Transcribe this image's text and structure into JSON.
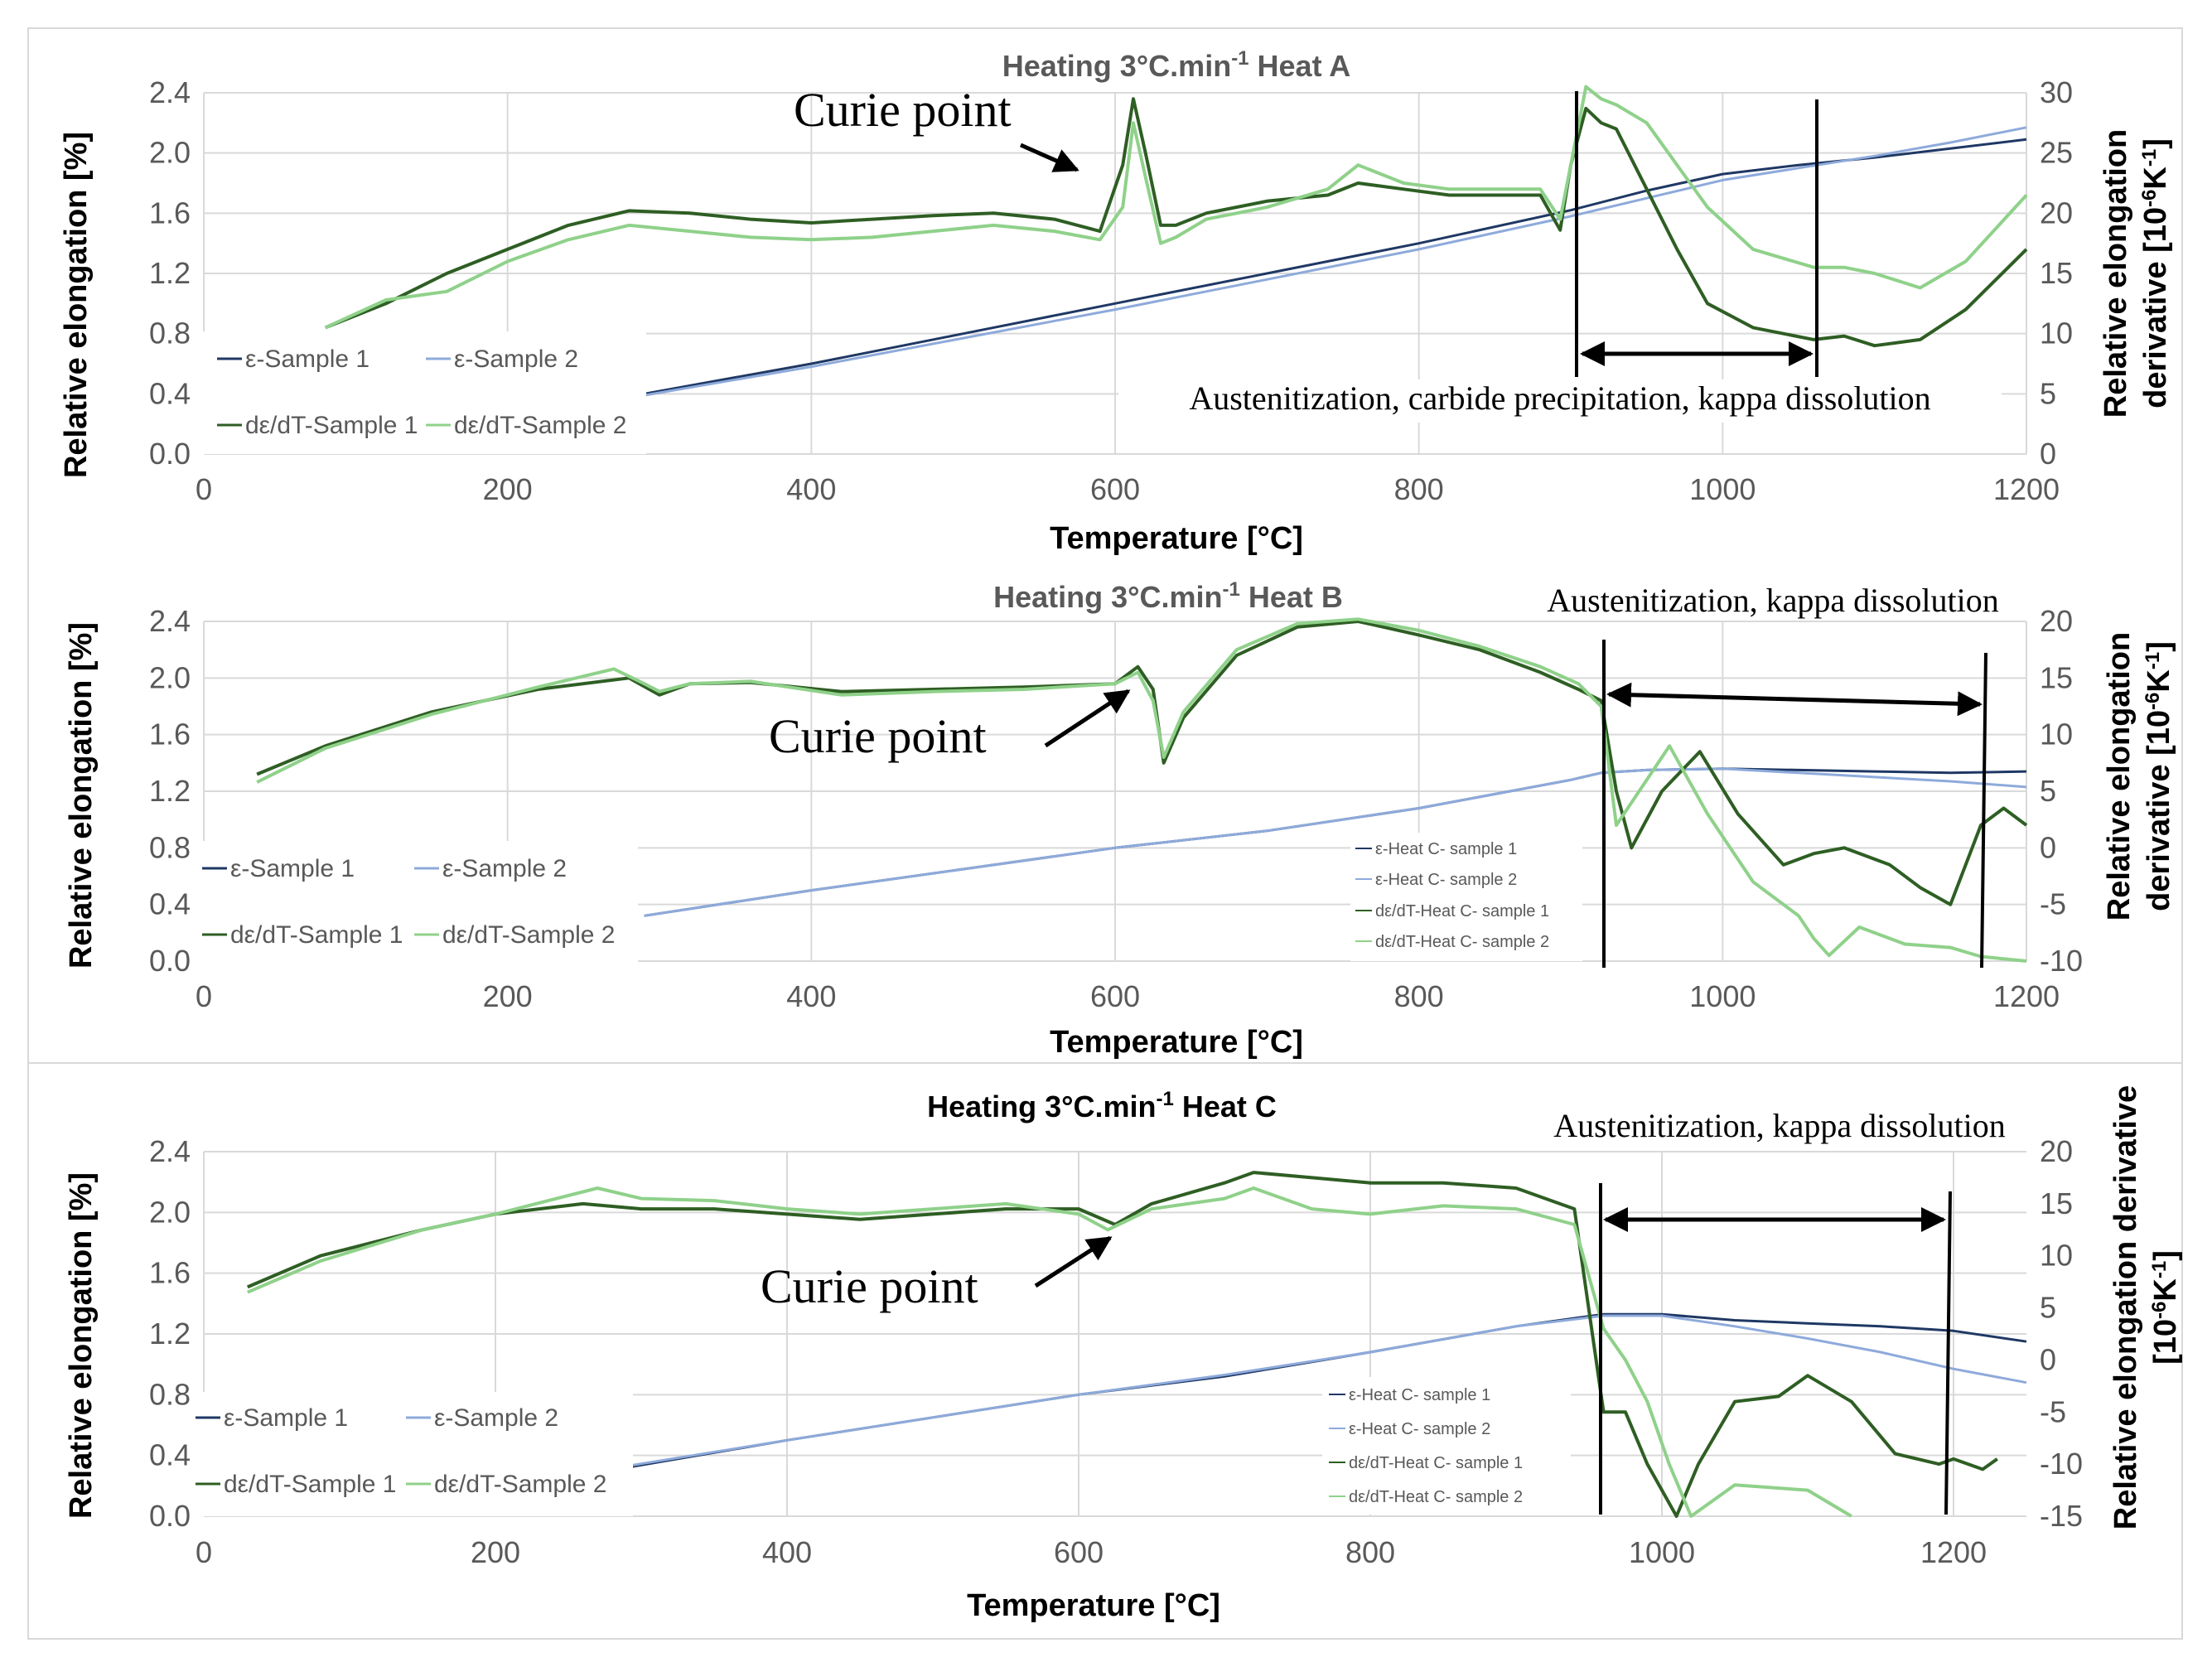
{
  "colors": {
    "eps1": "#1f3864",
    "eps2": "#8eaadb",
    "der1": "#2e5e23",
    "der2": "#8fd18a",
    "grid": "#d9d9d9",
    "tick": "#595959"
  },
  "chart_data": [
    {
      "type": "line",
      "title_prefix": "Heating 3°C.min",
      "title_sup": "-1",
      "title_suffix": " Heat A",
      "xlabel": "Temperature [°C]",
      "ylabel_left": "Relative elongation [%]",
      "ylabel_right_1": "Relative elongation",
      "ylabel_right_2": "derivative [10",
      "ylabel_right_sup": "-6",
      "ylabel_right_3": "K",
      "ylabel_right_sup2": "-1",
      "ylabel_right_4": "]",
      "xlim": [
        0,
        1200
      ],
      "ylim_left": [
        0,
        2.4
      ],
      "ylim_right": [
        0,
        30
      ],
      "x_ticks": [
        "0",
        "200",
        "400",
        "600",
        "800",
        "1000",
        "1200"
      ],
      "y_ticks_left": [
        "0.0",
        "0.4",
        "0.8",
        "1.2",
        "1.6",
        "2.0",
        "2.4"
      ],
      "y_ticks_right": [
        "0",
        "5",
        "10",
        "15",
        "20",
        "25",
        "30"
      ],
      "legend": [
        "ε-Sample 1",
        "ε-Sample 2",
        "dε/dT-Sample 1",
        "dε/dT-Sample 2"
      ],
      "annotations": {
        "curie": "Curie point",
        "range": "Austenitization, carbide precipitation, kappa dissolution"
      },
      "series": [
        {
          "name": "ε-Sample 1",
          "axis": "left",
          "x": [
            290,
            400,
            500,
            600,
            700,
            800,
            900,
            950,
            1000,
            1050,
            1100,
            1150,
            1200
          ],
          "values": [
            0.4,
            0.6,
            0.8,
            1.0,
            1.2,
            1.4,
            1.62,
            1.75,
            1.86,
            1.92,
            1.97,
            2.03,
            2.09
          ]
        },
        {
          "name": "ε-Sample 2",
          "axis": "left",
          "x": [
            290,
            400,
            500,
            600,
            700,
            800,
            900,
            950,
            1000,
            1050,
            1100,
            1150,
            1200
          ],
          "values": [
            0.39,
            0.58,
            0.77,
            0.96,
            1.16,
            1.36,
            1.58,
            1.7,
            1.82,
            1.9,
            1.98,
            2.07,
            2.17
          ]
        },
        {
          "name": "dε/dT-Sample 1",
          "axis": "right",
          "x": [
            80,
            120,
            160,
            200,
            240,
            280,
            320,
            360,
            400,
            440,
            480,
            520,
            560,
            590,
            605,
            612,
            620,
            630,
            640,
            660,
            700,
            740,
            760,
            790,
            820,
            850,
            880,
            893,
            900,
            910,
            920,
            930,
            950,
            970,
            990,
            1020,
            1060,
            1080,
            1100,
            1130,
            1160,
            1200
          ],
          "values": [
            10.5,
            12.5,
            15,
            17,
            19,
            20.2,
            20,
            19.5,
            19.2,
            19.5,
            19.8,
            20,
            19.5,
            18.5,
            24,
            29.5,
            25,
            19,
            19,
            20,
            21,
            21.5,
            22.5,
            22,
            21.5,
            21.5,
            21.5,
            18.6,
            24,
            28.7,
            27.5,
            27,
            22,
            17,
            12.5,
            10.5,
            9.5,
            9.8,
            9,
            9.5,
            12,
            17
          ]
        },
        {
          "name": "dε/dT-Sample 2",
          "axis": "right",
          "x": [
            80,
            120,
            160,
            200,
            240,
            280,
            320,
            360,
            400,
            440,
            480,
            520,
            560,
            590,
            605,
            612,
            620,
            630,
            640,
            660,
            700,
            740,
            760,
            790,
            820,
            850,
            880,
            893,
            900,
            910,
            920,
            930,
            950,
            970,
            990,
            1020,
            1060,
            1080,
            1100,
            1130,
            1160,
            1200
          ],
          "values": [
            10.5,
            12.8,
            13.5,
            16,
            17.8,
            19,
            18.5,
            18,
            17.8,
            18,
            18.5,
            19,
            18.5,
            17.8,
            20.5,
            27.5,
            23,
            17.5,
            18,
            19.5,
            20.5,
            22,
            24,
            22.5,
            22,
            22,
            22,
            19.5,
            24,
            30.5,
            29.5,
            29,
            27.5,
            24,
            20.5,
            17,
            15.5,
            15.5,
            15,
            13.8,
            16,
            21.5
          ]
        }
      ]
    },
    {
      "type": "line",
      "title_prefix": "Heating 3°C.min",
      "title_sup": "-1",
      "title_suffix": " Heat B",
      "xlabel": "Temperature [°C]",
      "ylabel_left": "Relative elongation [%]",
      "ylabel_right_1": "Relative elongation",
      "ylabel_right_2": "derivative [10",
      "ylabel_right_sup": "-6",
      "ylabel_right_3": "K",
      "ylabel_right_sup2": "-1",
      "ylabel_right_4": "]",
      "xlim": [
        0,
        1200
      ],
      "ylim_left": [
        0,
        2.4
      ],
      "ylim_right": [
        -10,
        20
      ],
      "x_ticks": [
        "0",
        "200",
        "400",
        "600",
        "800",
        "1000",
        "1200"
      ],
      "y_ticks_left": [
        "0.0",
        "0.4",
        "0.8",
        "1.2",
        "1.6",
        "2.0",
        "2.4"
      ],
      "y_ticks_right": [
        "-10",
        "-5",
        "0",
        "5",
        "10",
        "15",
        "20"
      ],
      "legend": [
        "ε-Sample 1",
        "ε-Sample 2",
        "dε/dT-Sample 1",
        "dε/dT-Sample 2"
      ],
      "legend_small": [
        "ε-Heat C- sample 1",
        "ε-Heat C- sample 2",
        "dε/dT-Heat C- sample 1",
        "dε/dT-Heat C- sample 2"
      ],
      "annotations": {
        "curie": "Curie point",
        "range": "Austenitization, kappa dissolution"
      },
      "series": [
        {
          "name": "ε-Sample 1",
          "axis": "left",
          "x": [
            290,
            400,
            500,
            600,
            700,
            800,
            900,
            920,
            950,
            1000,
            1050,
            1100,
            1150,
            1200
          ],
          "values": [
            0.32,
            0.5,
            0.65,
            0.8,
            0.92,
            1.08,
            1.28,
            1.33,
            1.35,
            1.36,
            1.35,
            1.34,
            1.33,
            1.34
          ]
        },
        {
          "name": "ε-Sample 2",
          "axis": "left",
          "x": [
            290,
            400,
            500,
            600,
            700,
            800,
            900,
            920,
            950,
            1000,
            1050,
            1100,
            1150,
            1200
          ],
          "values": [
            0.32,
            0.5,
            0.65,
            0.8,
            0.92,
            1.08,
            1.28,
            1.33,
            1.35,
            1.36,
            1.33,
            1.3,
            1.27,
            1.23
          ]
        },
        {
          "name": "dε/dT-Sample 1",
          "axis": "right",
          "x": [
            35,
            80,
            150,
            220,
            280,
            300,
            320,
            360,
            420,
            480,
            540,
            600,
            615,
            625,
            632,
            645,
            680,
            720,
            760,
            800,
            840,
            880,
            905,
            920,
            930,
            940,
            960,
            985,
            1010,
            1040,
            1060,
            1080,
            1110,
            1130,
            1150,
            1170,
            1185,
            1200
          ],
          "values": [
            6.5,
            9,
            12,
            14,
            15,
            13.5,
            14.5,
            14.6,
            13.8,
            14,
            14.2,
            14.5,
            16,
            14,
            7.5,
            11.5,
            17,
            19.5,
            20,
            18.8,
            17.5,
            15.5,
            14,
            13,
            5,
            0,
            5,
            8.5,
            3,
            -1.5,
            -0.5,
            0,
            -1.5,
            -3.5,
            -5,
            2,
            3.5,
            2
          ]
        },
        {
          "name": "dε/dT-Sample 2",
          "axis": "right",
          "x": [
            35,
            80,
            150,
            220,
            270,
            290,
            300,
            320,
            360,
            420,
            480,
            540,
            600,
            615,
            625,
            632,
            645,
            680,
            720,
            760,
            800,
            840,
            880,
            905,
            920,
            930,
            945,
            965,
            990,
            1020,
            1050,
            1060,
            1070,
            1090,
            1120,
            1150,
            1170,
            1200
          ],
          "values": [
            5.8,
            8.8,
            11.8,
            14.2,
            15.8,
            14.5,
            13.8,
            14.5,
            14.7,
            13.5,
            13.8,
            14,
            14.5,
            15.5,
            13,
            8,
            12,
            17.5,
            19.8,
            20.2,
            19.2,
            17.8,
            16,
            14.5,
            12.5,
            2,
            5,
            9,
            3,
            -3,
            -6,
            -8,
            -9.5,
            -7,
            -8.5,
            -8.8,
            -9.6,
            -10
          ]
        }
      ]
    },
    {
      "type": "line",
      "title_prefix": "Heating 3°C.min",
      "title_sup": "-1",
      "title_suffix": " Heat C",
      "xlabel": "Temperature [°C]",
      "ylabel_left": "Relative elongation [%]",
      "ylabel_right_1": "Relative elongation derivative",
      "ylabel_right_2": "[10",
      "ylabel_right_sup": "-6",
      "ylabel_right_3": "K",
      "ylabel_right_sup2": "-1",
      "ylabel_right_4": "]",
      "xlim": [
        0,
        1250
      ],
      "ylim_left": [
        0,
        2.4
      ],
      "ylim_right": [
        -15,
        20
      ],
      "x_ticks": [
        "0",
        "200",
        "400",
        "600",
        "800",
        "1000",
        "1200"
      ],
      "y_ticks_left": [
        "0.0",
        "0.4",
        "0.8",
        "1.2",
        "1.6",
        "2.0",
        "2.4"
      ],
      "y_ticks_right": [
        "-15",
        "-10",
        "-5",
        "0",
        "5",
        "10",
        "15",
        "20"
      ],
      "legend": [
        "ε-Sample 1",
        "ε-Sample 2",
        "dε/dT-Sample 1",
        "dε/dT-Sample 2"
      ],
      "legend_small": [
        "ε-Heat C- sample 1",
        "ε-Heat C- sample 2",
        "dε/dT-Heat C- sample 1",
        "dε/dT-Heat C- sample 2"
      ],
      "annotations": {
        "curie": "Curie point",
        "range": "Austenitization, kappa dissolution"
      },
      "series": [
        {
          "name": "ε-Sample 1",
          "axis": "left",
          "x": [
            290,
            400,
            500,
            600,
            700,
            800,
            900,
            960,
            1000,
            1050,
            1100,
            1150,
            1200,
            1250
          ],
          "values": [
            0.32,
            0.5,
            0.65,
            0.8,
            0.92,
            1.08,
            1.25,
            1.33,
            1.33,
            1.29,
            1.27,
            1.25,
            1.22,
            1.15
          ]
        },
        {
          "name": "ε-Sample 2",
          "axis": "left",
          "x": [
            290,
            400,
            500,
            600,
            700,
            800,
            900,
            960,
            1000,
            1050,
            1100,
            1150,
            1200,
            1250
          ],
          "values": [
            0.33,
            0.5,
            0.65,
            0.8,
            0.93,
            1.08,
            1.25,
            1.32,
            1.32,
            1.25,
            1.17,
            1.08,
            0.97,
            0.88
          ]
        },
        {
          "name": "dε/dT-Sample 1",
          "axis": "right",
          "x": [
            30,
            80,
            150,
            200,
            260,
            300,
            350,
            400,
            450,
            500,
            550,
            600,
            625,
            650,
            700,
            720,
            760,
            800,
            850,
            900,
            940,
            960,
            975,
            990,
            1010,
            1025,
            1050,
            1080,
            1100,
            1130,
            1160,
            1190,
            1200,
            1220,
            1230
          ],
          "values": [
            7,
            10,
            12.5,
            14,
            15,
            14.5,
            14.5,
            14,
            13.5,
            14,
            14.5,
            14.5,
            13,
            15,
            17,
            18,
            17.5,
            17,
            17,
            16.5,
            14.5,
            -5,
            -5,
            -10,
            -15,
            -10,
            -4,
            -3.5,
            -1.5,
            -4,
            -9,
            -10,
            -9.5,
            -10.5,
            -9.5
          ]
        },
        {
          "name": "dε/dT-Sample 2",
          "axis": "right",
          "x": [
            30,
            80,
            150,
            200,
            270,
            300,
            350,
            400,
            450,
            500,
            550,
            600,
            620,
            650,
            700,
            720,
            760,
            800,
            850,
            900,
            940,
            960,
            975,
            990,
            1005,
            1020,
            1050,
            1100,
            1130
          ],
          "values": [
            6.5,
            9.5,
            12.5,
            14,
            16.5,
            15.5,
            15.3,
            14.5,
            14,
            14.5,
            15,
            14,
            12.5,
            14.5,
            15.5,
            16.5,
            14.5,
            14,
            14.8,
            14.5,
            13,
            3,
            0,
            -4,
            -10,
            -15,
            -12,
            -12.5,
            -15
          ]
        }
      ]
    }
  ]
}
